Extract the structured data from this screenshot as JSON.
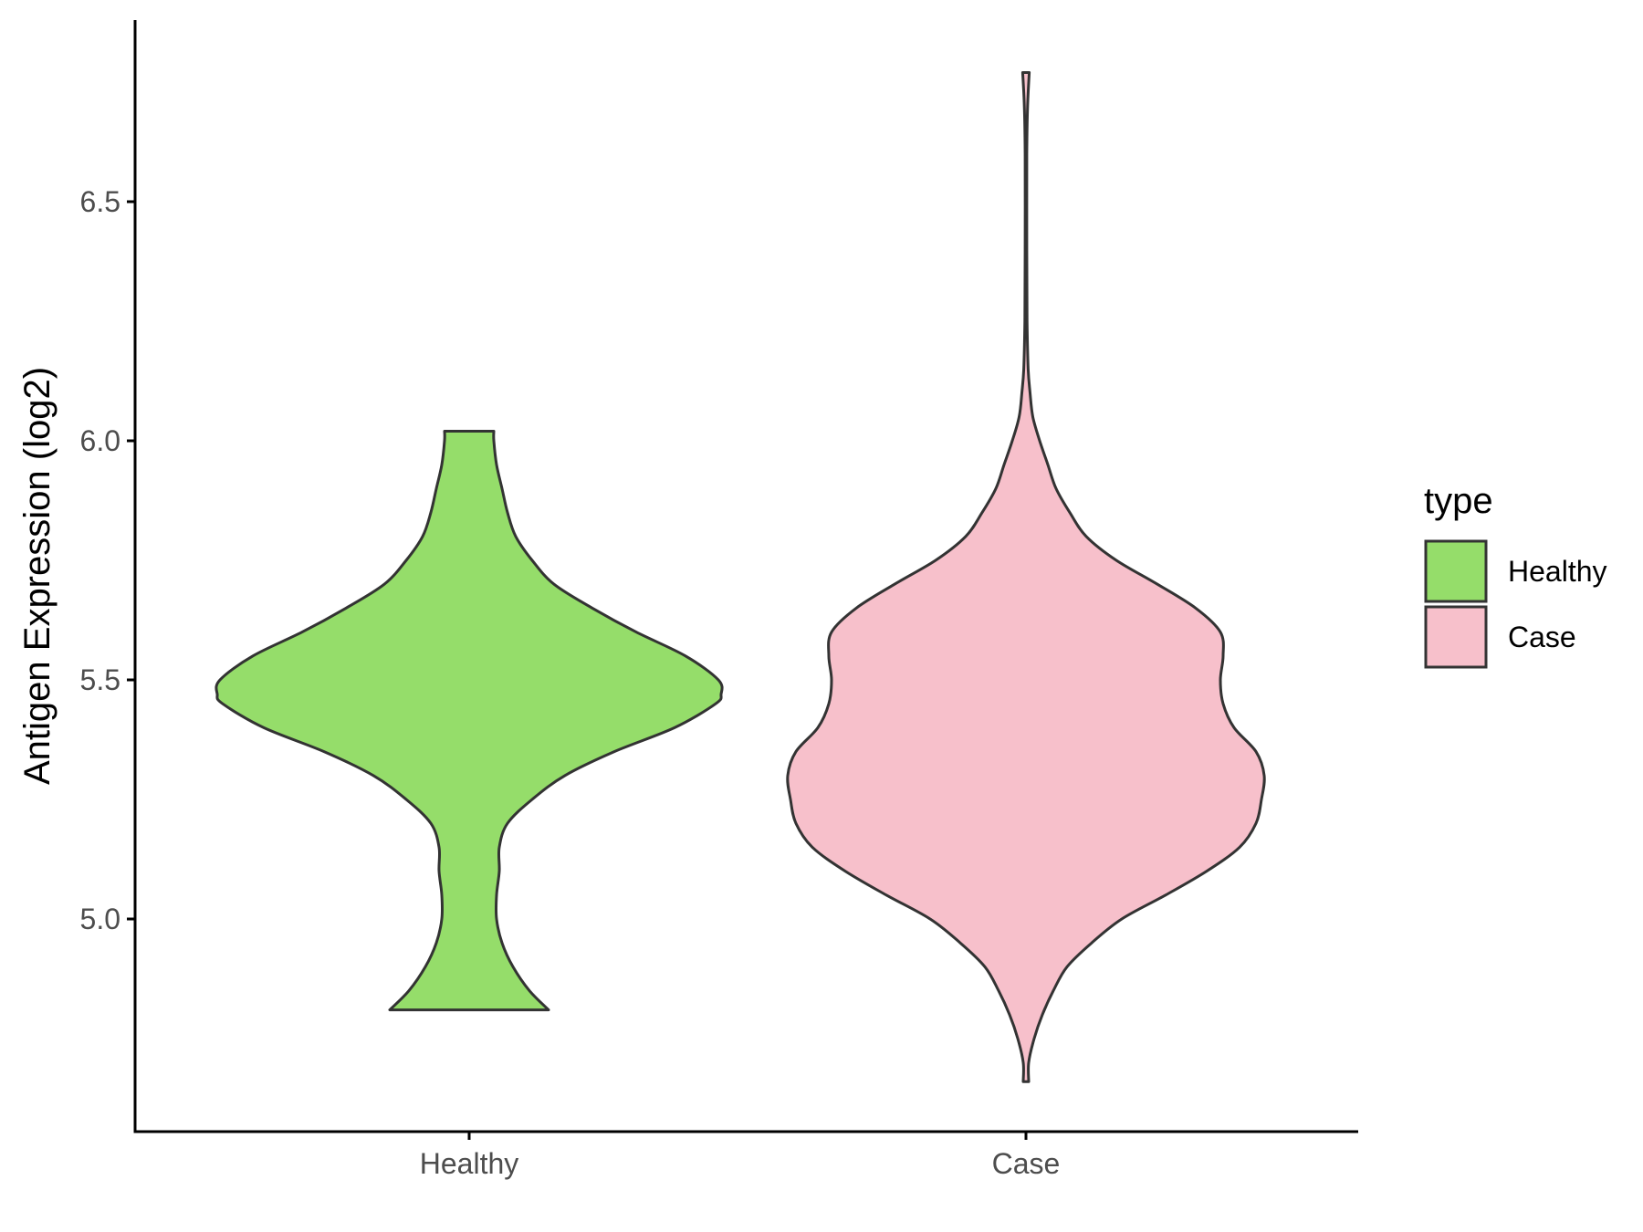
{
  "chart_data": {
    "type": "violin",
    "title": "",
    "xlabel": "",
    "ylabel": "Antigen Expression (log2)",
    "categories": [
      "Healthy",
      "Case"
    ],
    "ylim": [
      4.55,
      6.88
    ],
    "yticks": [
      5.0,
      5.5,
      6.0,
      6.5
    ],
    "ytick_labels": [
      "5.0",
      "5.5",
      "6.0",
      "6.5"
    ],
    "grid": false,
    "legend": {
      "title": "type",
      "position": "right",
      "entries": [
        {
          "label": "Healthy",
          "color": "#95dd6a"
        },
        {
          "label": "Case",
          "color": "#f7c0cb"
        }
      ]
    },
    "series": [
      {
        "name": "Healthy",
        "color": "#95dd6a",
        "min": 4.81,
        "max": 6.02,
        "density_profile": [
          [
            4.81,
            0.29
          ],
          [
            4.85,
            0.22
          ],
          [
            4.9,
            0.16
          ],
          [
            4.95,
            0.12
          ],
          [
            5.0,
            0.1
          ],
          [
            5.05,
            0.1
          ],
          [
            5.1,
            0.11
          ],
          [
            5.15,
            0.11
          ],
          [
            5.2,
            0.14
          ],
          [
            5.25,
            0.23
          ],
          [
            5.3,
            0.35
          ],
          [
            5.35,
            0.53
          ],
          [
            5.4,
            0.75
          ],
          [
            5.45,
            0.9
          ],
          [
            5.47,
            0.92
          ],
          [
            5.5,
            0.91
          ],
          [
            5.55,
            0.79
          ],
          [
            5.6,
            0.61
          ],
          [
            5.65,
            0.45
          ],
          [
            5.7,
            0.31
          ],
          [
            5.75,
            0.23
          ],
          [
            5.8,
            0.17
          ],
          [
            5.85,
            0.14
          ],
          [
            5.9,
            0.12
          ],
          [
            5.95,
            0.1
          ],
          [
            6.0,
            0.09
          ],
          [
            6.02,
            0.09
          ]
        ]
      },
      {
        "name": "Case",
        "color": "#f7c0cb",
        "min": 4.66,
        "max": 6.77,
        "density_profile": [
          [
            4.66,
            0.01
          ],
          [
            4.7,
            0.01
          ],
          [
            4.75,
            0.03
          ],
          [
            4.8,
            0.06
          ],
          [
            4.85,
            0.1
          ],
          [
            4.9,
            0.15
          ],
          [
            4.95,
            0.24
          ],
          [
            5.0,
            0.35
          ],
          [
            5.05,
            0.51
          ],
          [
            5.1,
            0.66
          ],
          [
            5.15,
            0.78
          ],
          [
            5.2,
            0.84
          ],
          [
            5.25,
            0.86
          ],
          [
            5.3,
            0.87
          ],
          [
            5.35,
            0.84
          ],
          [
            5.4,
            0.76
          ],
          [
            5.45,
            0.72
          ],
          [
            5.5,
            0.71
          ],
          [
            5.55,
            0.72
          ],
          [
            5.6,
            0.71
          ],
          [
            5.65,
            0.62
          ],
          [
            5.7,
            0.48
          ],
          [
            5.75,
            0.33
          ],
          [
            5.8,
            0.22
          ],
          [
            5.85,
            0.16
          ],
          [
            5.9,
            0.11
          ],
          [
            5.95,
            0.08
          ],
          [
            6.0,
            0.05
          ],
          [
            6.05,
            0.025
          ],
          [
            6.1,
            0.015
          ],
          [
            6.15,
            0.008
          ],
          [
            6.25,
            0.004
          ],
          [
            6.4,
            0.003
          ],
          [
            6.6,
            0.003
          ],
          [
            6.7,
            0.006
          ],
          [
            6.77,
            0.012
          ]
        ]
      }
    ]
  }
}
